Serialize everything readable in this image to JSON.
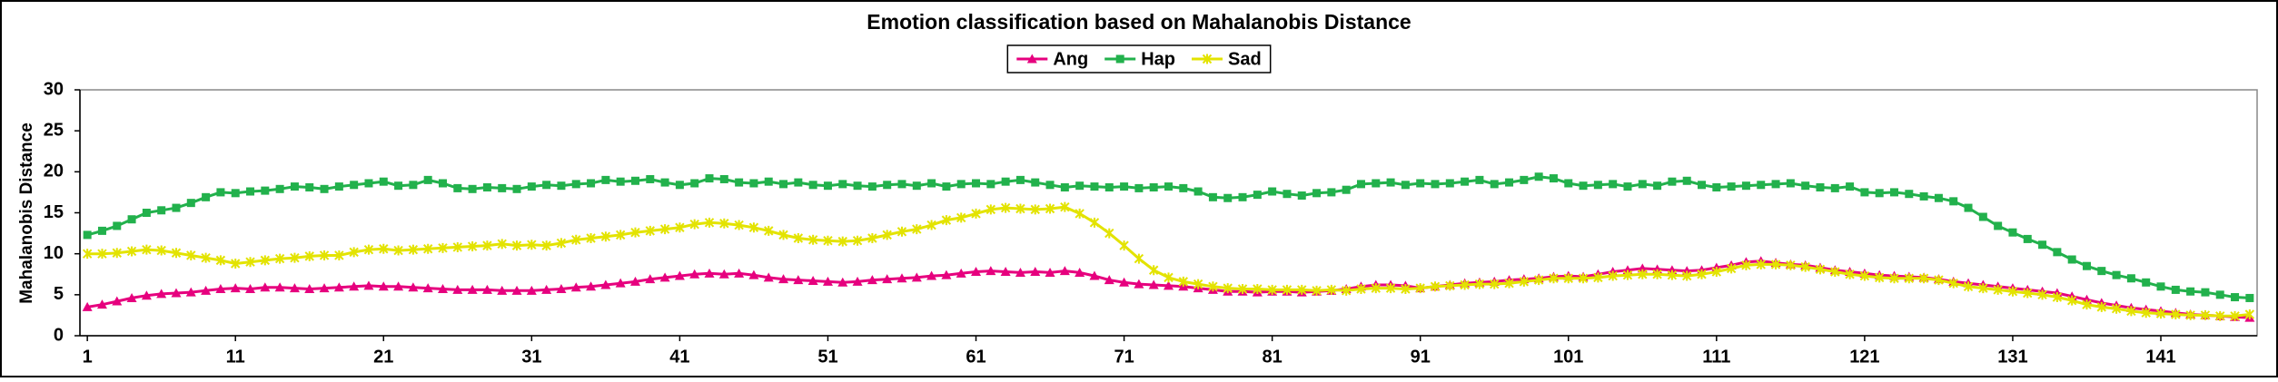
{
  "chart_data": {
    "type": "line",
    "title": "Emotion classification based on Mahalanobis Distance",
    "y_label": "Mahalanobis  Distance",
    "legend": "top",
    "grid": false,
    "xlim": [
      0.5,
      147.5
    ],
    "xticks": [
      1,
      11,
      21,
      31,
      41,
      51,
      61,
      71,
      81,
      91,
      101,
      111,
      121,
      131,
      141
    ],
    "ylim": [
      0,
      30
    ],
    "yticks": [
      0,
      5,
      10,
      15,
      20,
      25,
      30
    ],
    "x": [
      1,
      2,
      3,
      4,
      5,
      6,
      7,
      8,
      9,
      10,
      11,
      12,
      13,
      14,
      15,
      16,
      17,
      18,
      19,
      20,
      21,
      22,
      23,
      24,
      25,
      26,
      27,
      28,
      29,
      30,
      31,
      32,
      33,
      34,
      35,
      36,
      37,
      38,
      39,
      40,
      41,
      42,
      43,
      44,
      45,
      46,
      47,
      48,
      49,
      50,
      51,
      52,
      53,
      54,
      55,
      56,
      57,
      58,
      59,
      60,
      61,
      62,
      63,
      64,
      65,
      66,
      67,
      68,
      69,
      70,
      71,
      72,
      73,
      74,
      75,
      76,
      77,
      78,
      79,
      80,
      81,
      82,
      83,
      84,
      85,
      86,
      87,
      88,
      89,
      90,
      91,
      92,
      93,
      94,
      95,
      96,
      97,
      98,
      99,
      100,
      101,
      102,
      103,
      104,
      105,
      106,
      107,
      108,
      109,
      110,
      111,
      112,
      113,
      114,
      115,
      116,
      117,
      118,
      119,
      120,
      121,
      122,
      123,
      124,
      125,
      126,
      127,
      128,
      129,
      130,
      131,
      132,
      133,
      134,
      135,
      136,
      137,
      138,
      139,
      140,
      141,
      142,
      143,
      144,
      145,
      146,
      147
    ],
    "series": [
      {
        "name": "Ang",
        "color": "#e6007e",
        "marker": "triangle",
        "values": [
          3.5,
          3.8,
          4.2,
          4.6,
          4.9,
          5.1,
          5.2,
          5.3,
          5.5,
          5.7,
          5.8,
          5.7,
          5.9,
          5.9,
          5.8,
          5.7,
          5.8,
          5.9,
          6.0,
          6.1,
          6.0,
          6.0,
          5.9,
          5.8,
          5.7,
          5.6,
          5.6,
          5.6,
          5.5,
          5.5,
          5.5,
          5.6,
          5.7,
          5.9,
          6.0,
          6.2,
          6.4,
          6.6,
          6.9,
          7.1,
          7.3,
          7.5,
          7.6,
          7.5,
          7.6,
          7.4,
          7.1,
          6.9,
          6.8,
          6.7,
          6.6,
          6.5,
          6.6,
          6.8,
          6.9,
          7.0,
          7.1,
          7.3,
          7.4,
          7.6,
          7.8,
          7.9,
          7.8,
          7.7,
          7.8,
          7.7,
          7.9,
          7.7,
          7.3,
          6.8,
          6.5,
          6.3,
          6.2,
          6.1,
          6.0,
          5.8,
          5.6,
          5.4,
          5.4,
          5.3,
          5.4,
          5.4,
          5.3,
          5.4,
          5.5,
          5.7,
          6.0,
          6.2,
          6.2,
          6.1,
          5.8,
          6.0,
          6.2,
          6.4,
          6.5,
          6.6,
          6.8,
          6.9,
          7.0,
          7.2,
          7.3,
          7.2,
          7.5,
          7.8,
          8.0,
          8.2,
          8.1,
          8.0,
          7.9,
          8.0,
          8.3,
          8.6,
          9.0,
          9.1,
          8.9,
          8.7,
          8.6,
          8.3,
          8.0,
          7.8,
          7.6,
          7.4,
          7.3,
          7.2,
          7.1,
          6.9,
          6.6,
          6.4,
          6.2,
          6.0,
          5.8,
          5.6,
          5.4,
          5.2,
          4.8,
          4.4,
          4.0,
          3.7,
          3.4,
          3.2,
          3.0,
          2.8,
          2.6,
          2.5,
          2.4,
          2.3,
          2.2
        ]
      },
      {
        "name": "Hap",
        "color": "#22b14c",
        "marker": "square",
        "values": [
          12.3,
          12.8,
          13.4,
          14.2,
          15.0,
          15.3,
          15.6,
          16.2,
          16.9,
          17.5,
          17.4,
          17.6,
          17.7,
          17.9,
          18.2,
          18.1,
          17.9,
          18.2,
          18.4,
          18.6,
          18.8,
          18.3,
          18.4,
          19.0,
          18.6,
          18.0,
          17.9,
          18.1,
          18.0,
          17.9,
          18.2,
          18.4,
          18.3,
          18.5,
          18.6,
          19.0,
          18.8,
          18.9,
          19.1,
          18.7,
          18.4,
          18.6,
          19.2,
          19.1,
          18.7,
          18.6,
          18.8,
          18.5,
          18.7,
          18.4,
          18.3,
          18.5,
          18.3,
          18.2,
          18.4,
          18.5,
          18.3,
          18.6,
          18.2,
          18.5,
          18.6,
          18.5,
          18.8,
          19.0,
          18.7,
          18.4,
          18.1,
          18.3,
          18.2,
          18.1,
          18.2,
          18.0,
          18.1,
          18.2,
          18.0,
          17.6,
          16.9,
          16.8,
          16.9,
          17.2,
          17.6,
          17.3,
          17.1,
          17.4,
          17.5,
          17.8,
          18.5,
          18.6,
          18.7,
          18.4,
          18.6,
          18.5,
          18.6,
          18.8,
          19.0,
          18.5,
          18.7,
          19.0,
          19.4,
          19.2,
          18.6,
          18.3,
          18.4,
          18.5,
          18.2,
          18.5,
          18.3,
          18.8,
          18.9,
          18.4,
          18.1,
          18.2,
          18.3,
          18.4,
          18.5,
          18.6,
          18.3,
          18.1,
          18.0,
          18.2,
          17.5,
          17.4,
          17.5,
          17.3,
          17.0,
          16.8,
          16.4,
          15.6,
          14.5,
          13.4,
          12.6,
          11.8,
          11.1,
          10.2,
          9.3,
          8.5,
          7.9,
          7.4,
          7.0,
          6.5,
          6.0,
          5.6,
          5.4,
          5.3,
          5.0,
          4.7,
          4.6
        ]
      },
      {
        "name": "Sad",
        "color": "#e3e300",
        "marker": "star",
        "values": [
          10.0,
          10.0,
          10.1,
          10.3,
          10.5,
          10.4,
          10.1,
          9.8,
          9.5,
          9.2,
          8.8,
          9.0,
          9.2,
          9.4,
          9.5,
          9.7,
          9.8,
          9.8,
          10.2,
          10.5,
          10.6,
          10.4,
          10.5,
          10.6,
          10.7,
          10.8,
          10.9,
          11.0,
          11.2,
          11.0,
          11.1,
          11.0,
          11.3,
          11.7,
          11.9,
          12.1,
          12.3,
          12.6,
          12.8,
          13.0,
          13.2,
          13.6,
          13.8,
          13.7,
          13.5,
          13.2,
          12.8,
          12.3,
          11.9,
          11.7,
          11.6,
          11.5,
          11.6,
          11.9,
          12.3,
          12.7,
          13.0,
          13.5,
          14.1,
          14.4,
          14.9,
          15.4,
          15.6,
          15.5,
          15.4,
          15.5,
          15.7,
          14.9,
          13.8,
          12.5,
          11.0,
          9.4,
          8.0,
          7.1,
          6.6,
          6.3,
          6.0,
          5.8,
          5.7,
          5.7,
          5.6,
          5.6,
          5.6,
          5.5,
          5.6,
          5.5,
          5.7,
          5.8,
          5.8,
          5.7,
          5.8,
          6.0,
          6.1,
          6.2,
          6.3,
          6.3,
          6.4,
          6.6,
          6.8,
          7.0,
          7.0,
          7.0,
          7.1,
          7.3,
          7.4,
          7.5,
          7.5,
          7.4,
          7.3,
          7.5,
          7.8,
          8.2,
          8.6,
          8.7,
          8.7,
          8.6,
          8.4,
          8.1,
          7.8,
          7.5,
          7.3,
          7.1,
          7.0,
          7.0,
          7.0,
          6.8,
          6.4,
          6.0,
          5.8,
          5.6,
          5.4,
          5.2,
          5.0,
          4.7,
          4.3,
          3.8,
          3.5,
          3.3,
          3.0,
          2.8,
          2.7,
          2.6,
          2.5,
          2.5,
          2.4,
          2.4,
          2.6
        ]
      }
    ]
  }
}
